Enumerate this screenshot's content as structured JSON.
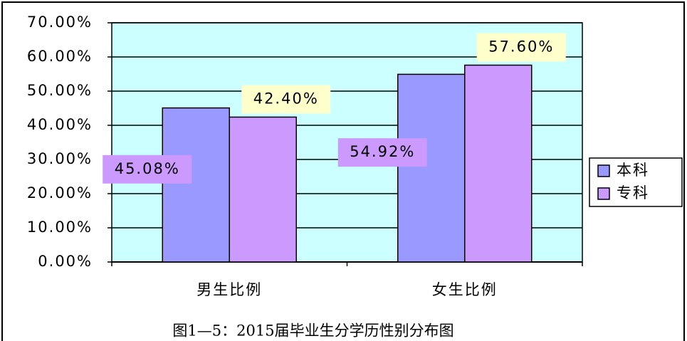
{
  "chart_data": {
    "type": "bar",
    "title": "图1—5：2015届毕业生分学历性别分布图",
    "categories": [
      "男生比例",
      "女生比例"
    ],
    "series": [
      {
        "name": "本科",
        "color": "#9999ff",
        "values": [
          45.08,
          54.92
        ],
        "value_labels": [
          "45.08%",
          "54.92%"
        ],
        "label_background": "#cc99ff"
      },
      {
        "name": "专科",
        "color": "#cc99ff",
        "values": [
          42.4,
          57.6
        ],
        "value_labels": [
          "42.40%",
          "57.60%"
        ],
        "label_background": "#ffffcc"
      }
    ],
    "ylim": [
      0,
      70
    ],
    "yticks": [
      {
        "value": 0,
        "label": "0.00%"
      },
      {
        "value": 10,
        "label": "10.00%"
      },
      {
        "value": 20,
        "label": "20.00%"
      },
      {
        "value": 30,
        "label": "30.00%"
      },
      {
        "value": 40,
        "label": "40.00%"
      },
      {
        "value": 50,
        "label": "50.00%"
      },
      {
        "value": 60,
        "label": "60.00%"
      },
      {
        "value": 70,
        "label": "70.00%"
      }
    ],
    "grid": true,
    "plot_background": "#ccffff",
    "legend": "right"
  }
}
